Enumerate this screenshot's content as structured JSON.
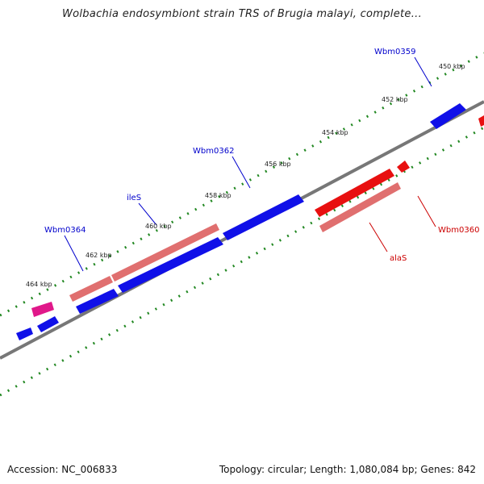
{
  "title": "Wolbachia endosymbiont strain TRS of Brugia malayi, complete...",
  "footer": {
    "accession": "Accession: NC_006833",
    "topology": "Topology: circular; Length: 1,080,084 bp; Genes: 842"
  },
  "colors": {
    "backbone": "#777777",
    "tick": "#228822",
    "gene_forward": "#1010e8",
    "gene_reverse": "#e81010",
    "rna_forward": "#e06f6f",
    "rna_reverse": "#e06f6f",
    "other": "#e0188a",
    "label_forward": "#0000cc",
    "label_reverse": "#cc0000"
  },
  "scale_labels": [
    "450 kbp",
    "452 kbp",
    "454 kbp",
    "456 kbp",
    "458 kbp",
    "460 kbp",
    "462 kbp",
    "464 kbp"
  ],
  "gene_labels": [
    "Wbm0359",
    "Wbm0362",
    "ileS",
    "Wbm0364",
    "Wbm0360",
    "alaS"
  ]
}
